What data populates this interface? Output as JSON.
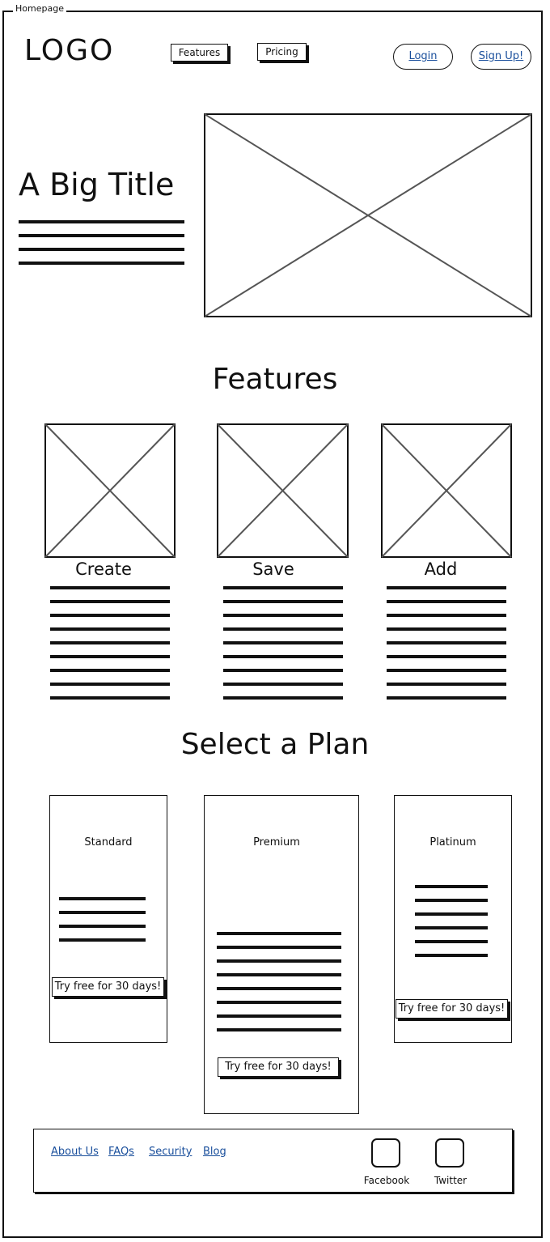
{
  "frame": {
    "title": "Homepage"
  },
  "header": {
    "logo": "LOGO",
    "nav": {
      "features": "Features",
      "pricing": "Pricing"
    },
    "login": "Login",
    "signup": "Sign Up!"
  },
  "hero": {
    "title": "A Big Title"
  },
  "features": {
    "heading": "Features",
    "items": [
      {
        "title": "Create"
      },
      {
        "title": "Save"
      },
      {
        "title": "Add"
      }
    ]
  },
  "plans": {
    "heading": "Select a Plan",
    "items": [
      {
        "name": "Standard",
        "cta": "Try free for 30 days!"
      },
      {
        "name": "Premium",
        "cta": "Try free for 30 days!"
      },
      {
        "name": "Platinum",
        "cta": "Try free for 30 days!"
      }
    ]
  },
  "footer": {
    "links": [
      "About Us",
      "FAQs",
      "Security",
      "Blog"
    ],
    "social": [
      {
        "label": "Facebook",
        "icon": "facebook-icon"
      },
      {
        "label": "Twitter",
        "icon": "twitter-icon"
      }
    ]
  }
}
